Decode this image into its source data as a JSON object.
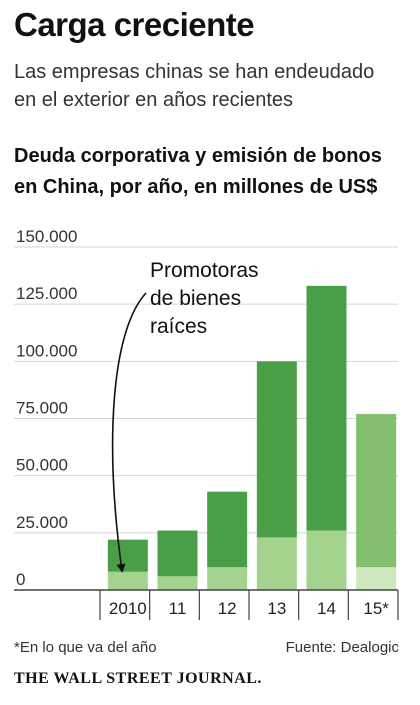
{
  "title": "Carga creciente",
  "subtitle": [
    "Las empresas chinas se han endeudado",
    "en el exterior en años recientes"
  ],
  "heading": [
    "Deuda corporativa y emisión de bonos",
    "en China, por año, en millones de US$"
  ],
  "footnote": "*En lo que va del año",
  "source": "Fuente: Dealogic",
  "brand": "THE WALL STREET JOURNAL.",
  "colors": {
    "dark_green": "#4a9e47",
    "light_green": "#a4d38f",
    "mid_green": "#84bf70",
    "pale_green": "#cfe7bf",
    "grid": "#d4d4d4",
    "axis": "#444444"
  },
  "chart_data": {
    "type": "bar",
    "stacked": true,
    "categories": [
      "2010",
      "11",
      "12",
      "13",
      "14",
      "15*"
    ],
    "series": [
      {
        "name": "Promotoras de bienes raíces",
        "values": [
          8000,
          6000,
          10000,
          23000,
          26000,
          10000
        ]
      },
      {
        "values": [
          14000,
          20000,
          33000,
          77000,
          107000,
          67000
        ]
      }
    ],
    "totals": [
      22000,
      26000,
      43000,
      100000,
      133000,
      77000
    ],
    "ylim": [
      0,
      150000
    ],
    "yticks": [
      "0",
      "25.000",
      "50.000",
      "75.000",
      "100.000",
      "125.000",
      "150.000"
    ],
    "grid": true,
    "annotation": [
      "Promotoras",
      "de bienes",
      "raíces"
    ]
  }
}
